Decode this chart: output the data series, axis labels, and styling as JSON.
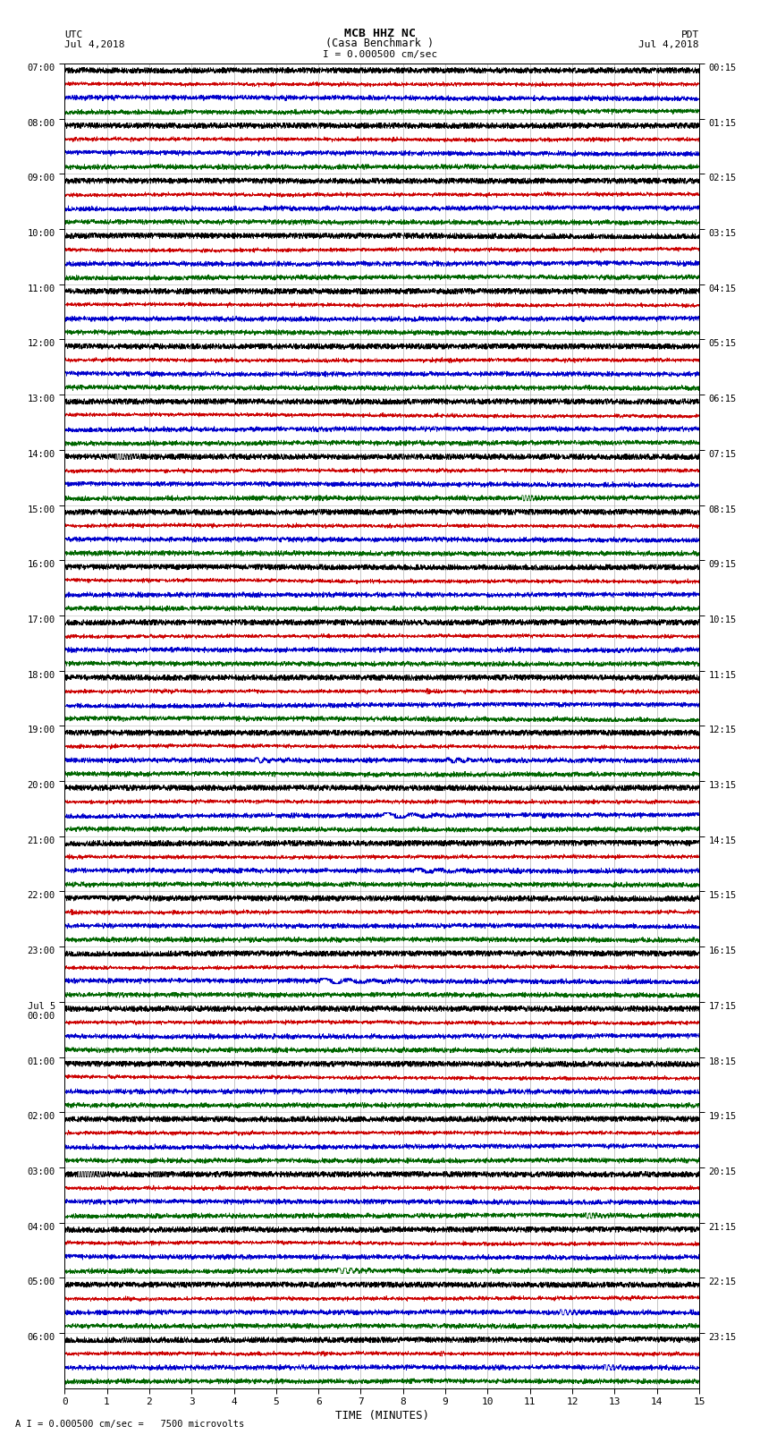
{
  "title_line1": "MCB HHZ NC",
  "title_line2": "(Casa Benchmark )",
  "title_line3": "I = 0.000500 cm/sec",
  "left_header_line1": "UTC",
  "left_header_line2": "Jul 4,2018",
  "right_header_line1": "PDT",
  "right_header_line2": "Jul 4,2018",
  "bottom_label": "TIME (MINUTES)",
  "bottom_note": "A I = 0.000500 cm/sec =   7500 microvolts",
  "xlabel_ticks": [
    0,
    1,
    2,
    3,
    4,
    5,
    6,
    7,
    8,
    9,
    10,
    11,
    12,
    13,
    14,
    15
  ],
  "utc_labels": [
    "07:00",
    "08:00",
    "09:00",
    "10:00",
    "11:00",
    "12:00",
    "13:00",
    "14:00",
    "15:00",
    "16:00",
    "17:00",
    "18:00",
    "19:00",
    "20:00",
    "21:00",
    "22:00",
    "23:00",
    "Jul 5\n00:00",
    "01:00",
    "02:00",
    "03:00",
    "04:00",
    "05:00",
    "06:00"
  ],
  "pdt_labels": [
    "00:15",
    "01:15",
    "02:15",
    "03:15",
    "04:15",
    "05:15",
    "06:15",
    "07:15",
    "08:15",
    "09:15",
    "10:15",
    "11:15",
    "12:15",
    "13:15",
    "14:15",
    "15:15",
    "16:15",
    "17:15",
    "18:15",
    "19:15",
    "20:15",
    "21:15",
    "22:15",
    "23:15"
  ],
  "n_rows": 24,
  "n_cols": 4,
  "line_colors": [
    "#000000",
    "#cc0000",
    "#0000cc",
    "#006600"
  ],
  "background_color": "white",
  "seed": 42
}
